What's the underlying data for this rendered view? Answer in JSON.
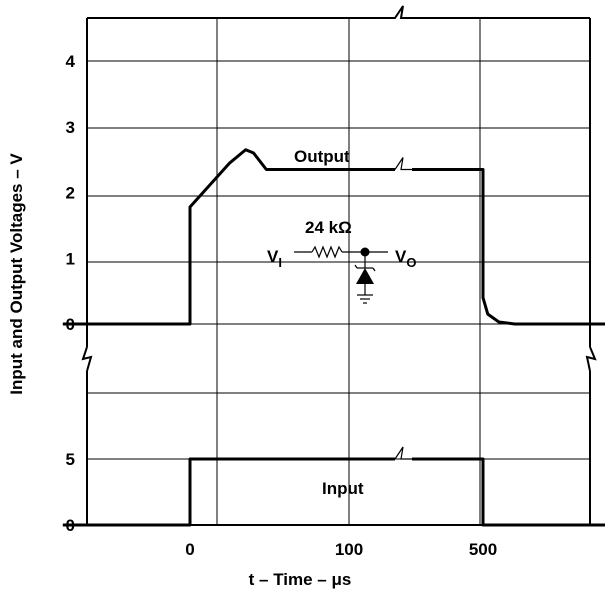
{
  "chart_data": {
    "type": "line",
    "xlabel": "t – Time – μs",
    "ylabel": "Input and Output Voltages – V",
    "x_ticks": [
      "0",
      "100",
      "500"
    ],
    "axis_break": "x axis broken between 100 and 500 μs",
    "grid": true,
    "panels": [
      {
        "name": "Output",
        "ylim": [
          0,
          4.6
        ],
        "y_ticks": [
          "0",
          "1",
          "2",
          "3",
          "4"
        ],
        "series": [
          {
            "name": "Output",
            "x": [
              -80,
              0,
              0,
              25,
              35,
              40,
              48,
              60,
              100,
              500,
              500,
              503,
              510,
              520,
              580
            ],
            "y": [
              0,
              0,
              1.78,
              2.45,
              2.65,
              2.6,
              2.35,
              2.35,
              2.35,
              2.35,
              0.4,
              0.15,
              0.03,
              0,
              0
            ]
          }
        ]
      },
      {
        "name": "Input",
        "ylim": [
          0,
          8.5
        ],
        "y_ticks": [
          "0",
          "5"
        ],
        "series": [
          {
            "name": "Input",
            "x": [
              -80,
              0,
              0,
              100,
              500,
              500,
              580
            ],
            "y": [
              0,
              0,
              5,
              5,
              5,
              0,
              0
            ]
          }
        ]
      }
    ],
    "annotations": {
      "output_label": "Output",
      "input_label": "Input",
      "circuit": {
        "resistor": "24 kΩ",
        "input_node": "V",
        "input_node_sub": "I",
        "output_node": "V",
        "output_node_sub": "O"
      }
    }
  }
}
